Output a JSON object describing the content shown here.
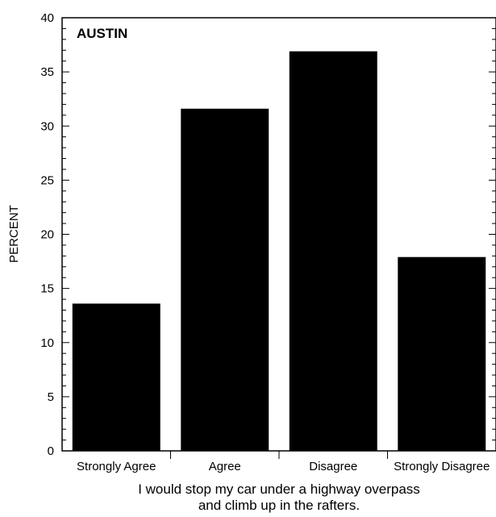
{
  "chart_data": {
    "type": "bar",
    "title": "AUSTIN",
    "categories": [
      "Strongly Agree",
      "Agree",
      "Disagree",
      "Strongly Disagree"
    ],
    "values": [
      13.6,
      31.6,
      36.9,
      17.9
    ],
    "ylabel": "PERCENT",
    "xlabel_lines": [
      "I would stop my car under a highway overpass",
      "and climb up in the rafters."
    ],
    "ylim": [
      0,
      40
    ],
    "yticks": [
      0,
      5,
      10,
      15,
      20,
      25,
      30,
      35,
      40
    ],
    "grid": false,
    "legend": "none",
    "bar_color": "#000000"
  }
}
